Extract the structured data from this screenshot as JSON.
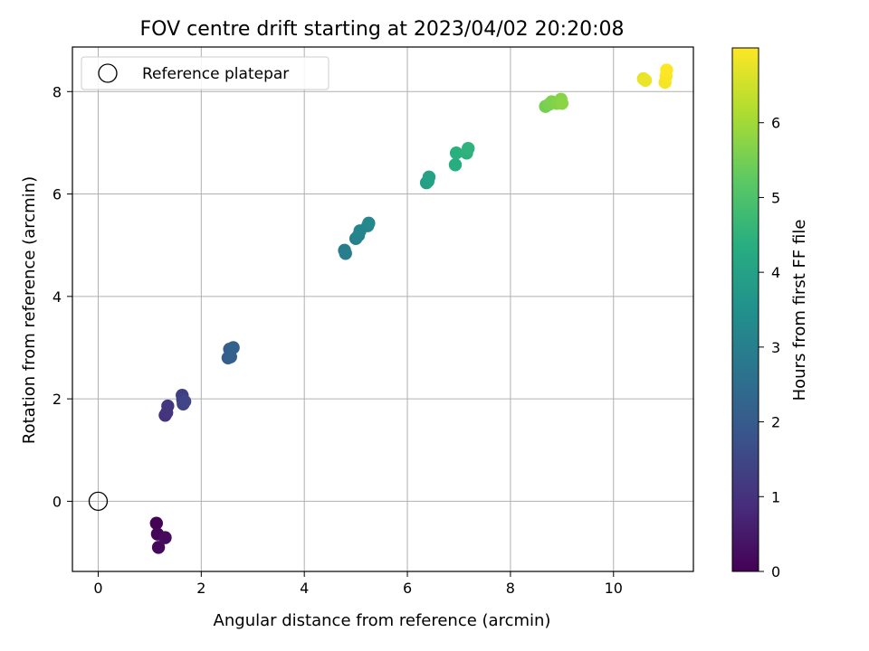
{
  "chart_data": {
    "type": "scatter",
    "title": "FOV centre drift starting at 2023/04/02 20:20:08",
    "xlabel": "Angular distance from reference (arcmin)",
    "ylabel": "Rotation from reference (arcmin)",
    "xlim": [
      -0.5,
      11.55
    ],
    "ylim": [
      -1.37,
      8.87
    ],
    "xticks": [
      0,
      2,
      4,
      6,
      8,
      10
    ],
    "yticks": [
      0,
      2,
      4,
      6,
      8
    ],
    "grid": true,
    "legend": {
      "placement": "top-left",
      "entries": [
        "Reference platepar"
      ]
    },
    "reference_point": {
      "name": "Reference platepar",
      "x": 0,
      "y": 0
    },
    "colorbar": {
      "label": "Hours from first FF file",
      "colormap": "viridis",
      "range": [
        0,
        7
      ],
      "ticks": [
        0,
        1,
        2,
        3,
        4,
        5,
        6
      ]
    },
    "points": [
      {
        "x": 1.13,
        "y": -0.43,
        "c": 0.05
      },
      {
        "x": 1.15,
        "y": -0.64,
        "c": 0.1
      },
      {
        "x": 1.17,
        "y": -0.9,
        "c": 0.15
      },
      {
        "x": 1.3,
        "y": -0.71,
        "c": 0.2
      },
      {
        "x": 1.3,
        "y": 1.68,
        "c": 1.0
      },
      {
        "x": 1.33,
        "y": 1.73,
        "c": 1.05
      },
      {
        "x": 1.35,
        "y": 1.86,
        "c": 1.1
      },
      {
        "x": 1.63,
        "y": 2.07,
        "c": 1.3
      },
      {
        "x": 1.64,
        "y": 1.98,
        "c": 1.35
      },
      {
        "x": 1.65,
        "y": 1.9,
        "c": 1.4
      },
      {
        "x": 1.68,
        "y": 1.95,
        "c": 1.45
      },
      {
        "x": 2.52,
        "y": 2.8,
        "c": 2.0
      },
      {
        "x": 2.55,
        "y": 2.97,
        "c": 2.05
      },
      {
        "x": 2.57,
        "y": 2.82,
        "c": 2.1
      },
      {
        "x": 2.62,
        "y": 3.0,
        "c": 2.15
      },
      {
        "x": 4.78,
        "y": 4.9,
        "c": 2.9
      },
      {
        "x": 4.8,
        "y": 4.84,
        "c": 2.95
      },
      {
        "x": 5.0,
        "y": 5.13,
        "c": 3.05
      },
      {
        "x": 5.05,
        "y": 5.19,
        "c": 3.1
      },
      {
        "x": 5.08,
        "y": 5.28,
        "c": 3.15
      },
      {
        "x": 5.23,
        "y": 5.38,
        "c": 3.2
      },
      {
        "x": 5.25,
        "y": 5.43,
        "c": 3.25
      },
      {
        "x": 6.37,
        "y": 6.22,
        "c": 3.9
      },
      {
        "x": 6.4,
        "y": 6.25,
        "c": 3.95
      },
      {
        "x": 6.42,
        "y": 6.33,
        "c": 4.0
      },
      {
        "x": 6.93,
        "y": 6.57,
        "c": 4.35
      },
      {
        "x": 6.95,
        "y": 6.8,
        "c": 4.4
      },
      {
        "x": 7.15,
        "y": 6.8,
        "c": 4.45
      },
      {
        "x": 7.18,
        "y": 6.89,
        "c": 4.5
      },
      {
        "x": 8.68,
        "y": 7.71,
        "c": 5.5
      },
      {
        "x": 8.75,
        "y": 7.75,
        "c": 5.55
      },
      {
        "x": 8.8,
        "y": 7.8,
        "c": 5.6
      },
      {
        "x": 8.9,
        "y": 7.77,
        "c": 5.65
      },
      {
        "x": 8.98,
        "y": 7.85,
        "c": 5.7
      },
      {
        "x": 9.0,
        "y": 7.77,
        "c": 5.75
      },
      {
        "x": 10.58,
        "y": 8.25,
        "c": 6.75
      },
      {
        "x": 10.62,
        "y": 8.22,
        "c": 6.8
      },
      {
        "x": 11.0,
        "y": 8.18,
        "c": 6.9
      },
      {
        "x": 11.02,
        "y": 8.3,
        "c": 6.95
      },
      {
        "x": 11.03,
        "y": 8.42,
        "c": 7.0
      }
    ]
  }
}
